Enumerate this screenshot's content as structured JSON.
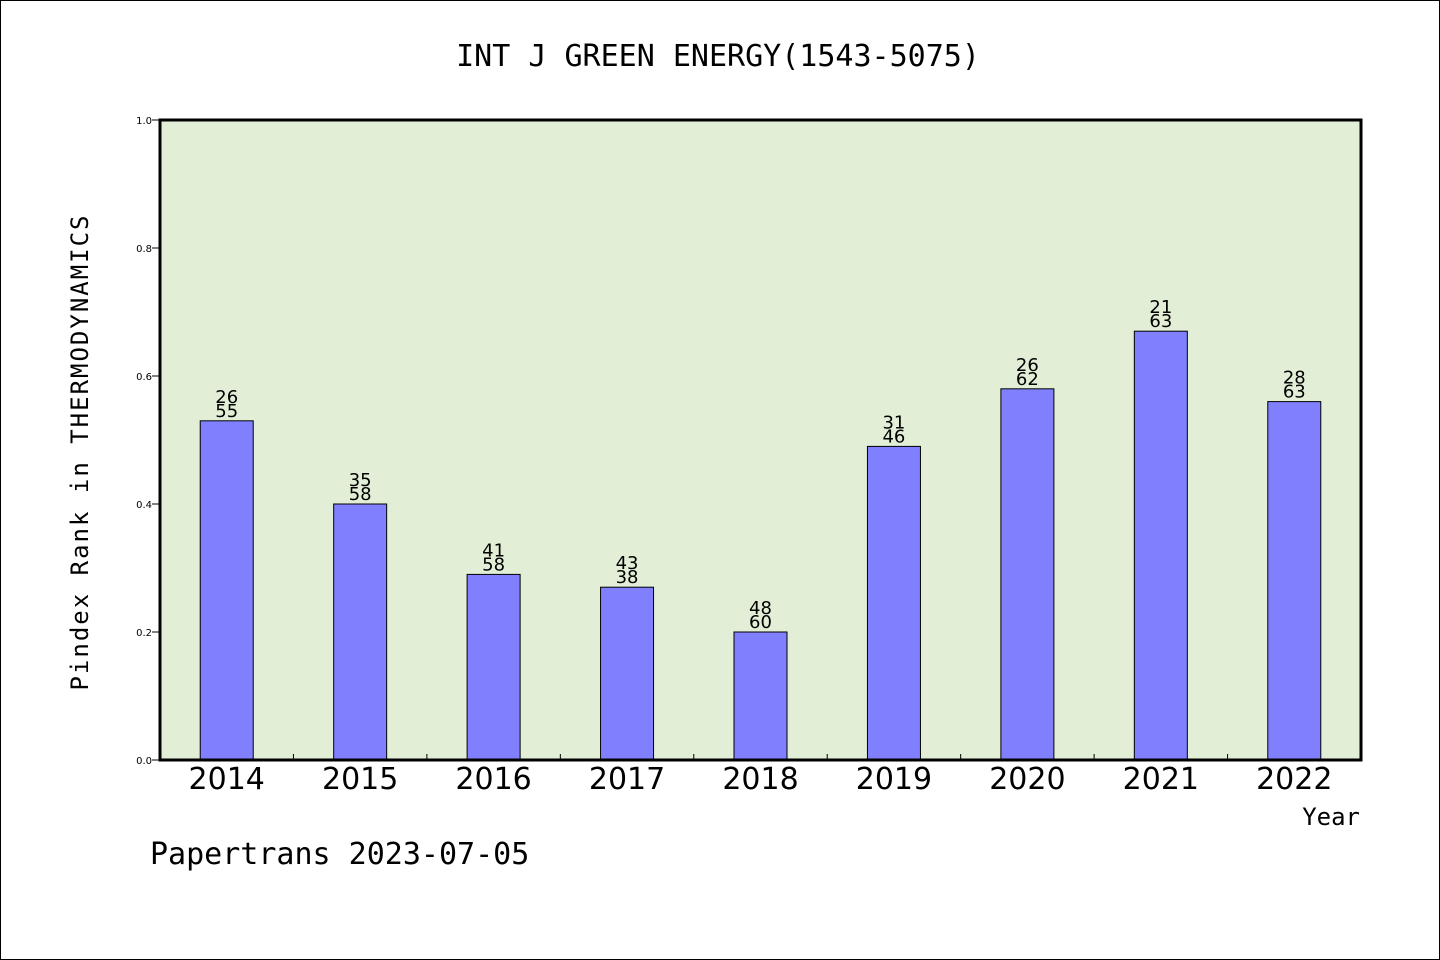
{
  "chart_data": {
    "type": "bar",
    "title": "INT J GREEN ENERGY(1543-5075)",
    "xlabel": "Year",
    "ylabel": "Pindex Rank in THERMODYNAMICS",
    "categories": [
      "2014",
      "2015",
      "2016",
      "2017",
      "2018",
      "2019",
      "2020",
      "2021",
      "2022"
    ],
    "values": [
      0.53,
      0.4,
      0.29,
      0.27,
      0.2,
      0.49,
      0.58,
      0.67,
      0.56
    ],
    "annotations": [
      [
        "26",
        "55"
      ],
      [
        "35",
        "58"
      ],
      [
        "41",
        "58"
      ],
      [
        "43",
        "38"
      ],
      [
        "48",
        "60"
      ],
      [
        "31",
        "46"
      ],
      [
        "26",
        "62"
      ],
      [
        "21",
        "63"
      ],
      [
        "28",
        "63"
      ]
    ],
    "ylim": [
      0,
      1.0
    ],
    "yticks": [
      "0.0",
      "0.2",
      "0.4",
      "0.6",
      "0.8",
      "1.0"
    ],
    "grid": false,
    "colors": {
      "bar": "#8080ff",
      "plot_background": "#e2efd6",
      "axis": "#000000"
    }
  },
  "footer": {
    "text": "Papertrans 2023-07-05"
  }
}
